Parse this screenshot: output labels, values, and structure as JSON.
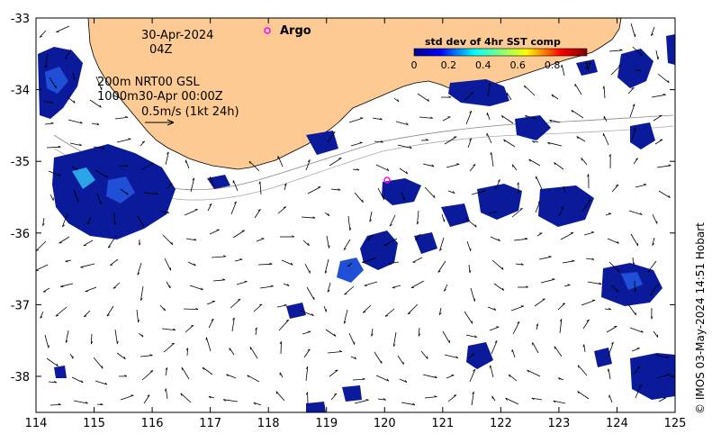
{
  "map": {
    "date_line": "30-Apr-2024",
    "time_line": "04Z",
    "contour_line": "200m  NRT00 GSL",
    "contour_line2": "1000m30-Apr 00:00Z",
    "scale_label": "0.5m/s (1kt 24h)",
    "argo_label": "Argo",
    "colorbar_title": "std dev of 4hr SST comp",
    "colorbar_ticks": [
      "0",
      "0.2",
      "0.4",
      "0.6",
      "0.8",
      "1"
    ],
    "credit": "© IMOS 03-May-2024 14:51 Hobart",
    "x_ticks": [
      "114",
      "115",
      "116",
      "117",
      "118",
      "119",
      "120",
      "121",
      "122",
      "123",
      "124",
      "125"
    ],
    "y_ticks": [
      "-33",
      "-34",
      "-35",
      "-36",
      "-37",
      "-38"
    ],
    "colors": {
      "land": "#FDCA93",
      "patch_dark": "#0a1a9a",
      "patch_mid": "#1f4fd6",
      "patch_light": "#2aa3e8",
      "argo": "#ff00ff"
    }
  }
}
